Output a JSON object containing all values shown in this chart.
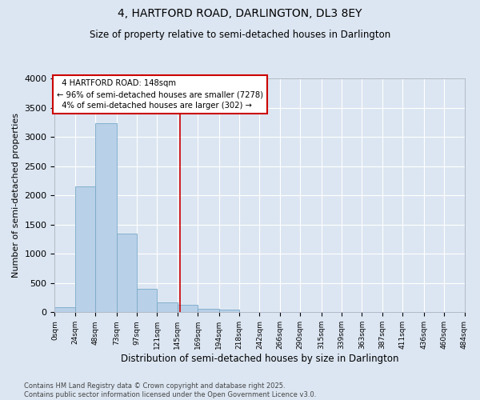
{
  "title": "4, HARTFORD ROAD, DARLINGTON, DL3 8EY",
  "subtitle": "Size of property relative to semi-detached houses in Darlington",
  "xlabel": "Distribution of semi-detached houses by size in Darlington",
  "ylabel": "Number of semi-detached properties",
  "property_size": 148,
  "property_label": "4 HARTFORD ROAD: 148sqm",
  "pct_smaller": 96,
  "pct_larger": 4,
  "count_smaller": 7278,
  "count_larger": 302,
  "bar_color": "#b8d0e8",
  "bar_edge_color": "#7aaac8",
  "vline_color": "#cc0000",
  "annotation_box_color": "#cc0000",
  "background_color": "#dce6f2",
  "grid_color": "#ffffff",
  "bin_edges": [
    0,
    24,
    48,
    73,
    97,
    121,
    145,
    169,
    194,
    218,
    242,
    266,
    290,
    315,
    339,
    363,
    387,
    411,
    436,
    460,
    484
  ],
  "bin_counts": [
    90,
    2150,
    3230,
    1350,
    400,
    170,
    130,
    65,
    40,
    0,
    0,
    0,
    0,
    0,
    0,
    0,
    0,
    0,
    0,
    0
  ],
  "ylim": [
    0,
    4000
  ],
  "yticks": [
    0,
    500,
    1000,
    1500,
    2000,
    2500,
    3000,
    3500,
    4000
  ],
  "footer_text": "Contains HM Land Registry data © Crown copyright and database right 2025.\nContains public sector information licensed under the Open Government Licence v3.0.",
  "tick_labels": [
    "0sqm",
    "24sqm",
    "48sqm",
    "73sqm",
    "97sqm",
    "121sqm",
    "145sqm",
    "169sqm",
    "194sqm",
    "218sqm",
    "242sqm",
    "266sqm",
    "290sqm",
    "315sqm",
    "339sqm",
    "363sqm",
    "387sqm",
    "411sqm",
    "436sqm",
    "460sqm",
    "484sqm"
  ],
  "title_fontsize": 10,
  "subtitle_fontsize": 8.5,
  "ylabel_fontsize": 8,
  "xlabel_fontsize": 8.5,
  "ytick_fontsize": 8,
  "xtick_fontsize": 6.5
}
